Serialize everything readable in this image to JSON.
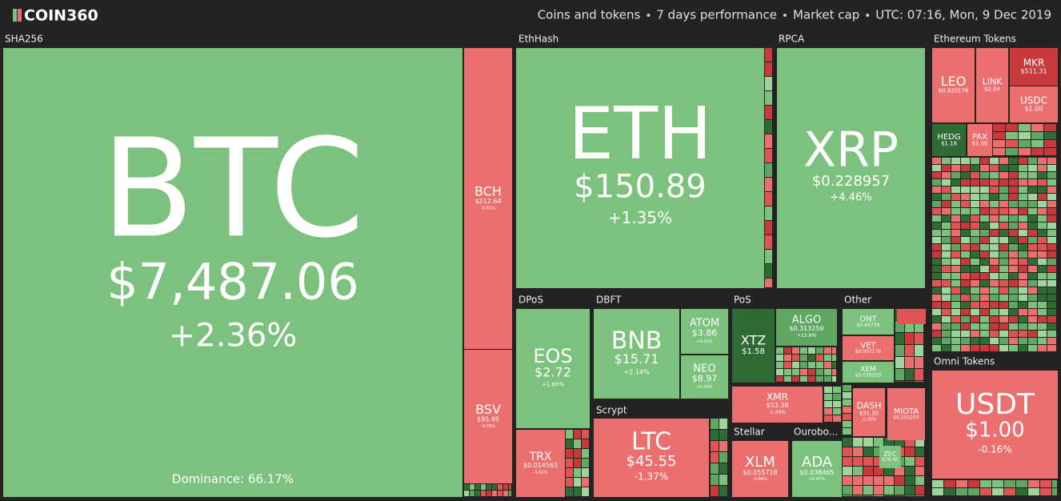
{
  "header": {
    "logo": "COIN360",
    "filters": [
      "Coins and tokens",
      "7 days performance",
      "Market cap",
      "UTC: 07:16, Mon, 9 Dec 2019"
    ]
  },
  "groups": [
    "SHA256",
    "EthHash",
    "RPCA",
    "Ethereum Tokens",
    "Omni Tokens",
    "DPoS",
    "DBFT",
    "Scrypt",
    "PoS",
    "Other",
    "Stellar",
    "Ourobo..."
  ],
  "dominance": "Dominance: 66.17%",
  "tiles": [
    {
      "symbol": "BTC",
      "price": "$7,487.06",
      "change": "+2.36%",
      "color": "#7cc27e"
    },
    {
      "symbol": "BCH",
      "price": "$212.64",
      "change": "-0.61%",
      "color": "#ec6f6f"
    },
    {
      "symbol": "BSV",
      "price": "$95.95",
      "change": "-8.76%",
      "color": "#ec6f6f"
    },
    {
      "symbol": "ETH",
      "price": "$150.89",
      "change": "+1.35%",
      "color": "#7cc27e"
    },
    {
      "symbol": "XRP",
      "price": "$0.228957",
      "change": "+4.46%",
      "color": "#7cc27e"
    },
    {
      "symbol": "LEO",
      "price": "$0.920176",
      "color": "#ec6f6f"
    },
    {
      "symbol": "LINK",
      "price": "$2.04",
      "color": "#ec6f6f"
    },
    {
      "symbol": "MKR",
      "price": "$511.31",
      "color": "#c83a3a"
    },
    {
      "symbol": "USDC",
      "price": "$1.00",
      "color": "#ec6f6f"
    },
    {
      "symbol": "HEDG",
      "price": "$1.18",
      "color": "#2e6b35"
    },
    {
      "symbol": "PAX",
      "price": "$1.00",
      "color": "#ec6f6f"
    },
    {
      "symbol": "USDT",
      "price": "$1.00",
      "change": "-0.16%",
      "color": "#ec6f6f"
    },
    {
      "symbol": "EOS",
      "price": "$2.72",
      "change": "+1.65%",
      "color": "#7cc27e"
    },
    {
      "symbol": "TRX",
      "price": "$0.014563",
      "change": "-4.62%",
      "color": "#ec6f6f"
    },
    {
      "symbol": "BNB",
      "price": "$15.71",
      "change": "+2.14%",
      "color": "#7cc27e"
    },
    {
      "symbol": "ATOM",
      "price": "$3.86",
      "change": "+0.22%",
      "color": "#7cc27e"
    },
    {
      "symbol": "NEO",
      "price": "$8.97",
      "change": "+0.16%",
      "color": "#7cc27e"
    },
    {
      "symbol": "LTC",
      "price": "$45.55",
      "change": "-1.37%",
      "color": "#ec6f6f"
    },
    {
      "symbol": "XTZ",
      "price": "$1.58",
      "color": "#2e6b35"
    },
    {
      "symbol": "ALGO",
      "price": "$0.313259",
      "change": "+13.6%",
      "color": "#5ea662"
    },
    {
      "symbol": "XMR",
      "price": "$53.38",
      "change": "-1.04%",
      "color": "#ec6f6f"
    },
    {
      "symbol": "ONT",
      "price": "$0.64739",
      "color": "#7cc27e"
    },
    {
      "symbol": "VET",
      "price": "$0.007176",
      "color": "#ec6f6f"
    },
    {
      "symbol": "XEM",
      "price": "$0.036253",
      "color": "#7cc27e"
    },
    {
      "symbol": "DASH",
      "price": "$51.35",
      "change": "-0.35%",
      "color": "#ec6f6f"
    },
    {
      "symbol": "MIOTA",
      "price": "$0.205203",
      "color": "#ec6f6f"
    },
    {
      "symbol": "XLM",
      "price": "$0.055718",
      "change": "-5.84%",
      "color": "#ec6f6f"
    },
    {
      "symbol": "ADA",
      "price": "$0.038465",
      "change": "+0.97%",
      "color": "#7cc27e"
    },
    {
      "symbol": "ZEC",
      "price": "$29.45",
      "color": "#7cc27e"
    }
  ]
}
